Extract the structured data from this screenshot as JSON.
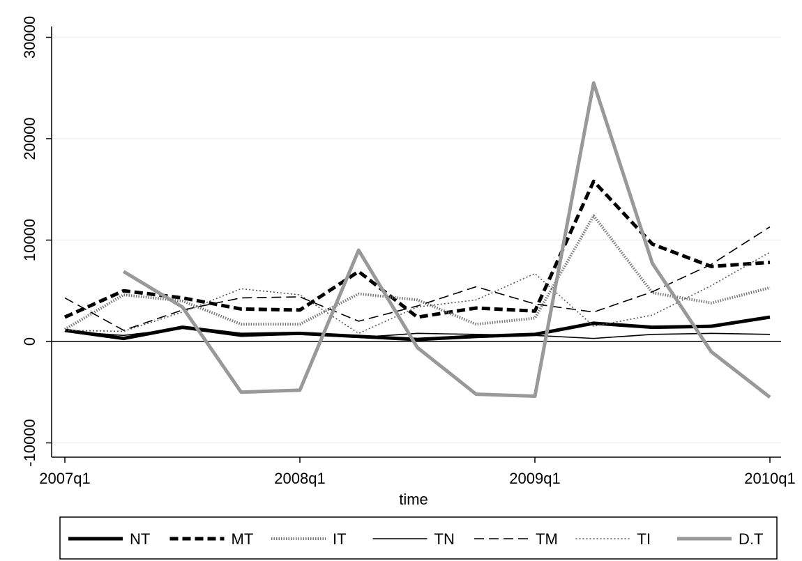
{
  "chart_data": {
    "type": "line",
    "xlabel": "time",
    "ylabel": "",
    "ylim": [
      -10000,
      30000
    ],
    "yticks": [
      -10000,
      0,
      10000,
      20000,
      30000
    ],
    "ytick_labels": [
      "-10000",
      "0",
      "10000",
      "20000",
      "30000"
    ],
    "xticks": [
      "2007q1",
      "2008q1",
      "2009q1",
      "2010q1"
    ],
    "x": [
      "2007q1",
      "2007q2",
      "2007q3",
      "2007q4",
      "2008q1",
      "2008q2",
      "2008q3",
      "2008q4",
      "2009q1",
      "2009q2",
      "2009q3",
      "2009q4",
      "2010q1"
    ],
    "zero_line": true,
    "grid": "horizontal",
    "legend_position": "bottom",
    "series": [
      {
        "name": "NT",
        "style": "thick-solid",
        "color": "#000000",
        "values": [
          1100,
          300,
          1400,
          700,
          800,
          500,
          200,
          500,
          700,
          1800,
          1400,
          1500,
          2400
        ]
      },
      {
        "name": "MT",
        "style": "thick-dash",
        "color": "#000000",
        "values": [
          2400,
          5000,
          4300,
          3200,
          3100,
          6900,
          2400,
          3300,
          3000,
          15800,
          9600,
          7400,
          7800
        ]
      },
      {
        "name": "IT",
        "style": "thick-dot",
        "color": "#777777",
        "values": [
          1200,
          4600,
          4000,
          1700,
          1700,
          4700,
          4100,
          1700,
          2300,
          12400,
          4800,
          3800,
          5300
        ]
      },
      {
        "name": "TN",
        "style": "thin-solid",
        "color": "#000000",
        "values": [
          1000,
          600,
          1300,
          500,
          700,
          400,
          800,
          700,
          600,
          300,
          700,
          800,
          700
        ]
      },
      {
        "name": "TM",
        "style": "thin-dash",
        "color": "#000000",
        "values": [
          4300,
          1100,
          3100,
          4300,
          4400,
          2000,
          3500,
          5400,
          3700,
          2900,
          4900,
          7600,
          11300
        ]
      },
      {
        "name": "TI",
        "style": "thin-dot",
        "color": "#555555",
        "values": [
          1100,
          1000,
          2900,
          5200,
          4600,
          800,
          3400,
          4100,
          6700,
          1500,
          2600,
          5500,
          8800
        ]
      },
      {
        "name": "D.T",
        "style": "thick-gray",
        "color": "#999999",
        "values": [
          null,
          6900,
          3400,
          -5000,
          -4800,
          9000,
          -600,
          -5200,
          -5400,
          25500,
          7700,
          -1000,
          -5500
        ]
      }
    ]
  }
}
